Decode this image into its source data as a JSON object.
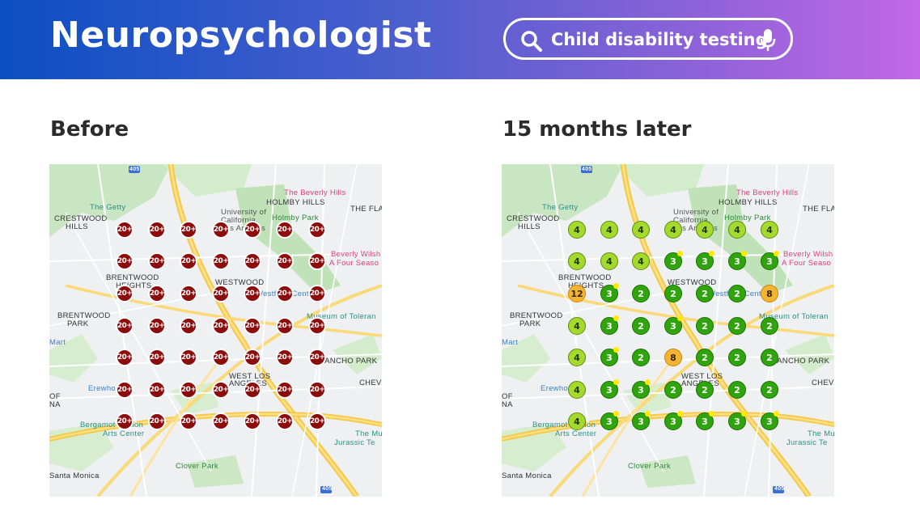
{
  "header": {
    "brand": "Neuropsychologist",
    "search_query": "Child disability testing"
  },
  "panels": [
    {
      "title": "Before",
      "rows": [
        [
          "20+",
          "20+",
          "20+",
          "20+",
          "20+",
          "20+",
          "20+"
        ],
        [
          "20+",
          "20+",
          "20+",
          "20+",
          "20+",
          "20+",
          "20+"
        ],
        [
          "20+",
          "20+",
          "20+",
          "20+",
          "20+",
          "20+",
          "20+"
        ],
        [
          "20+",
          "20+",
          "20+",
          "20+",
          "20+",
          "20+",
          "20+"
        ],
        [
          "20+",
          "20+",
          "20+",
          "20+",
          "20+",
          "20+",
          "20+"
        ],
        [
          "20+",
          "20+",
          "20+",
          "20+",
          "20+",
          "20+",
          "20+"
        ],
        [
          "20+",
          "20+",
          "20+",
          "20+",
          "20+",
          "20+",
          "20+"
        ]
      ]
    },
    {
      "title": "15 months later",
      "rows": [
        [
          "4",
          "4",
          "4",
          "4",
          "4",
          "4",
          "4"
        ],
        [
          "4",
          "4",
          "4",
          "3",
          "3",
          "3",
          "3"
        ],
        [
          "12",
          "3",
          "2",
          "2",
          "2",
          "2",
          "8"
        ],
        [
          "4",
          "3",
          "2",
          "3",
          "2",
          "2",
          "2"
        ],
        [
          "4",
          "3",
          "2",
          "8",
          "2",
          "2",
          "2"
        ],
        [
          "4",
          "3",
          "3",
          "2",
          "2",
          "2",
          "2"
        ],
        [
          "4",
          "3",
          "3",
          "3",
          "3",
          "3",
          "3"
        ]
      ]
    }
  ],
  "map_labels": [
    {
      "text": "405",
      "kind": "shield"
    },
    {
      "text": "The Getty",
      "kind": "teal"
    },
    {
      "text": "CRESTWOOD",
      "kind": "dark"
    },
    {
      "text": "HILLS",
      "kind": "dark"
    },
    {
      "text": "University of",
      "kind": "plain"
    },
    {
      "text": "California,",
      "kind": "plain"
    },
    {
      "text": "Los Angeles",
      "kind": "plain"
    },
    {
      "text": "HOLMBY HILLS",
      "kind": "dark"
    },
    {
      "text": "The Beverly Hills",
      "kind": "pink"
    },
    {
      "text": "Holmby Park",
      "kind": "green"
    },
    {
      "text": "THE FLA",
      "kind": "dark"
    },
    {
      "text": "Beverly Wilsh",
      "kind": "pink"
    },
    {
      "text": "A Four Seaso",
      "kind": "pink"
    },
    {
      "text": "BRENTWOOD",
      "kind": "dark"
    },
    {
      "text": "HEIGHTS",
      "kind": "dark"
    },
    {
      "text": "WESTWOOD",
      "kind": "dark"
    },
    {
      "text": "Westfield Century",
      "kind": "blue"
    },
    {
      "text": "BRENTWOOD",
      "kind": "dark"
    },
    {
      "text": "PARK",
      "kind": "dark"
    },
    {
      "text": "Museum of Toleran",
      "kind": "teal"
    },
    {
      "text": "Mart",
      "kind": "blue"
    },
    {
      "text": "RANCHO PARK",
      "kind": "dark"
    },
    {
      "text": "WEST LOS",
      "kind": "dark"
    },
    {
      "text": "ANGELES",
      "kind": "dark"
    },
    {
      "text": "CHEV",
      "kind": "dark"
    },
    {
      "text": "Erewhon",
      "kind": "blue"
    },
    {
      "text": "OF",
      "kind": "dark"
    },
    {
      "text": "NA",
      "kind": "dark"
    },
    {
      "text": "Bergamot Station",
      "kind": "teal"
    },
    {
      "text": "Arts Center",
      "kind": "teal"
    },
    {
      "text": "The Mu",
      "kind": "teal"
    },
    {
      "text": "Jurassic Te",
      "kind": "teal"
    },
    {
      "text": "Clover Park",
      "kind": "green"
    },
    {
      "text": "Santa Monica",
      "kind": "dark"
    },
    {
      "text": "405",
      "kind": "shield"
    }
  ],
  "colors": {
    "before_marker": "#8c0b0b",
    "rank_4": "#a4d92e",
    "rank_2_3": "#2fa40c",
    "rank_high": "#f3b531",
    "header_start": "#0b4fc2",
    "header_end": "#c268e6"
  },
  "icons": [
    "search-icon",
    "microphone-icon"
  ]
}
